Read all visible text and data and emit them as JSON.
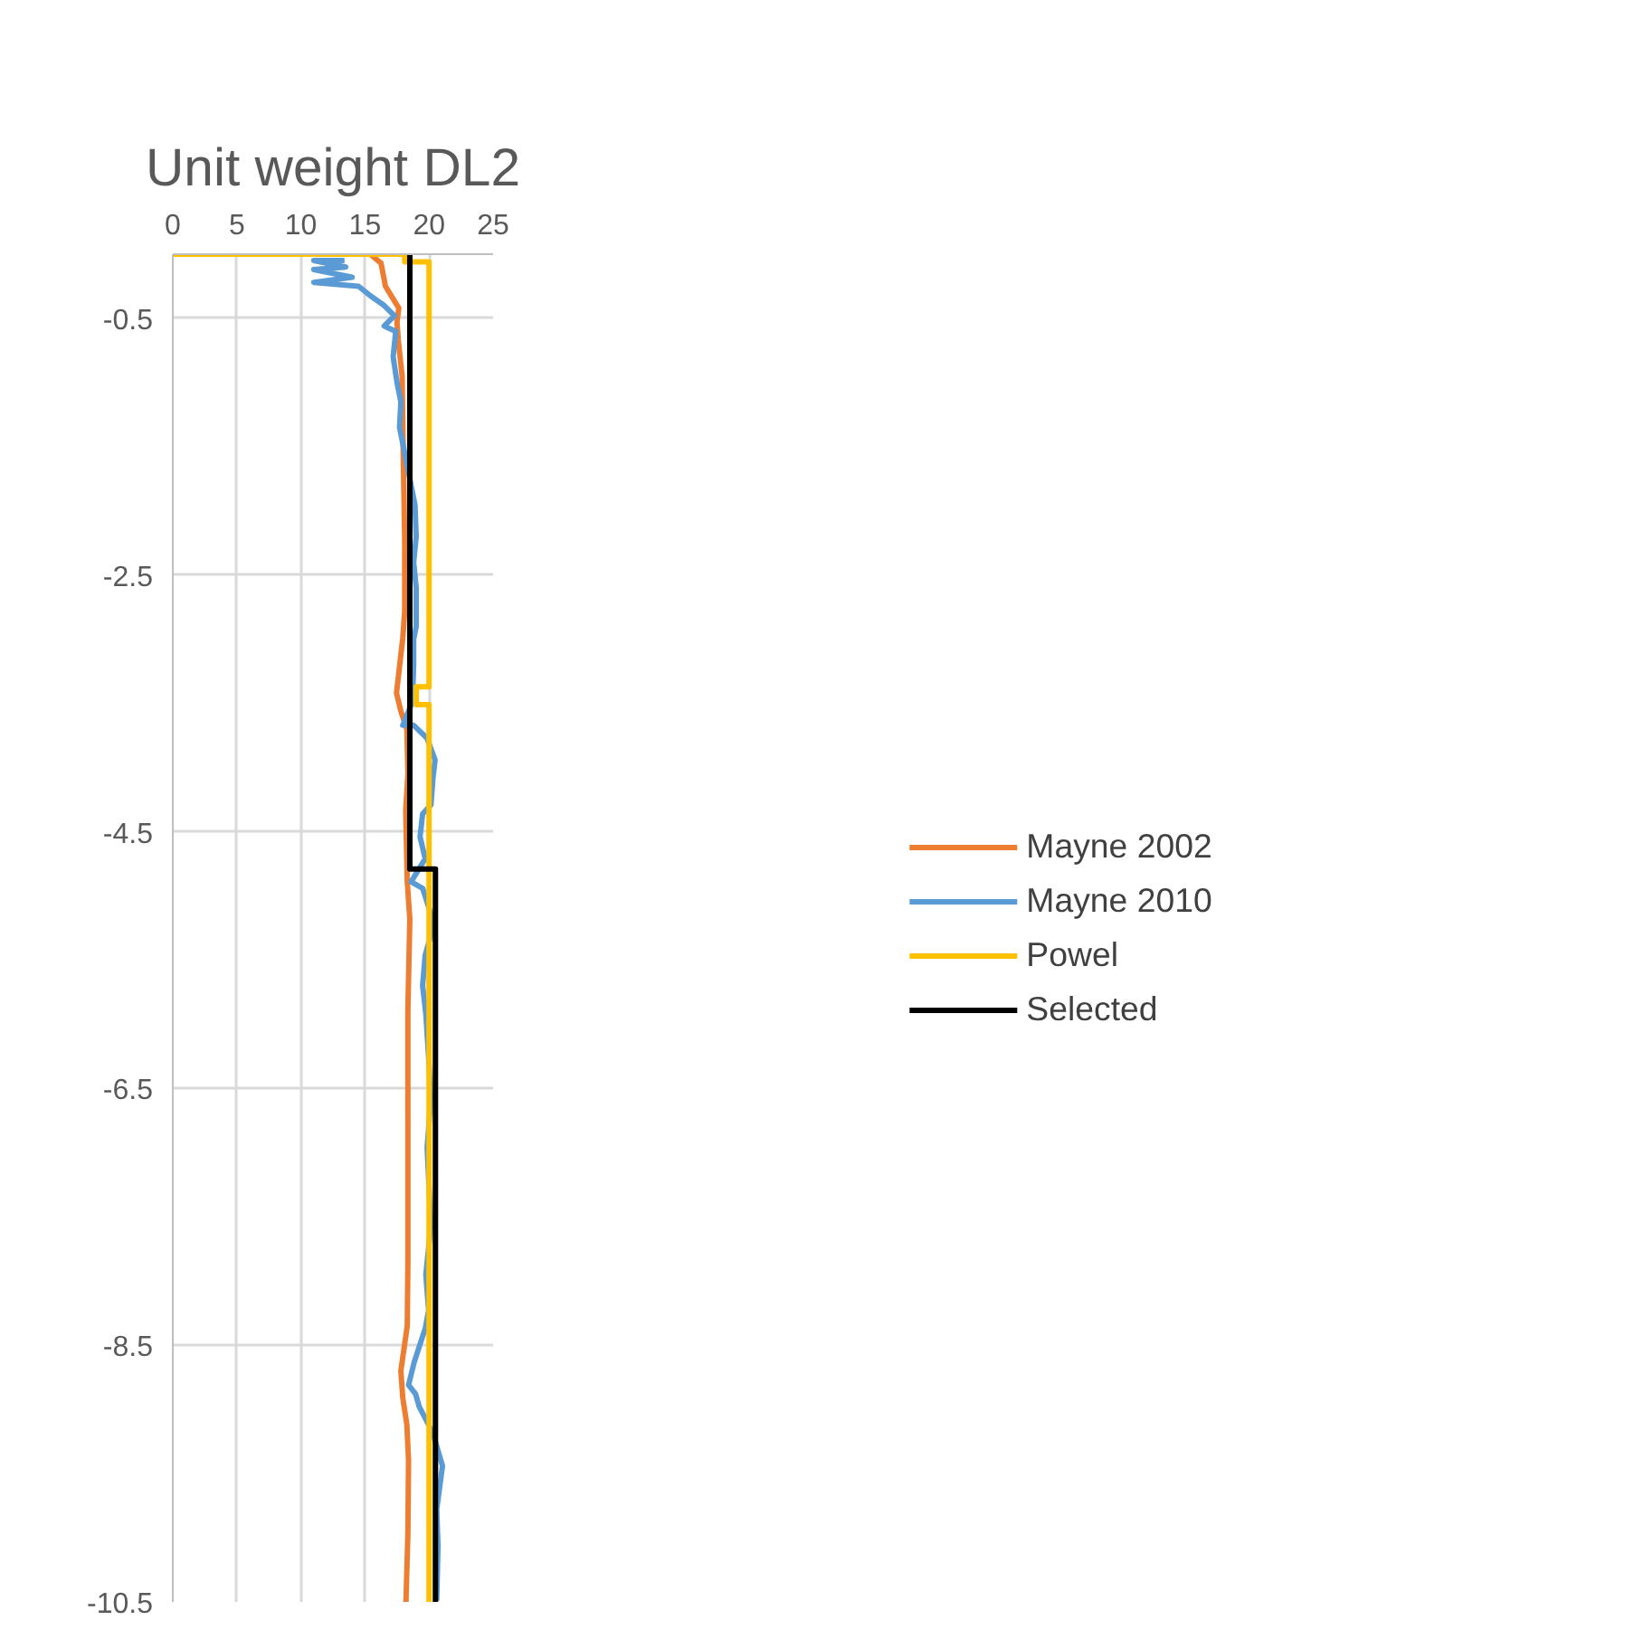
{
  "chart_data": {
    "type": "line",
    "title": "Unit weight DL2",
    "xlim": [
      0,
      25
    ],
    "xticks": [
      0,
      5,
      10,
      15,
      20,
      25
    ],
    "ylim": [
      -10.5,
      0
    ],
    "yticks": [
      -10.5,
      -8.5,
      -6.5,
      -4.5,
      -2.5,
      -0.5
    ],
    "grid": true,
    "legend": "right",
    "series": [
      {
        "name": "Mayne 2002",
        "color": "#ed7d31",
        "x": [
          15.4,
          16.25,
          16.6,
          17.64,
          17.5,
          17.6,
          17.9,
          18.0,
          18.1,
          18.1,
          17.95,
          17.46,
          17.8,
          18.27,
          18.35,
          18.18,
          18.3,
          18.5,
          18.35,
          18.35,
          18.35,
          18.3,
          17.8,
          17.95,
          18.27,
          18.4,
          18.35,
          18.2
        ],
        "values": [
          0,
          -0.07,
          -0.25,
          -0.42,
          -0.53,
          -0.67,
          -0.95,
          -1.65,
          -2.22,
          -2.78,
          -2.99,
          -3.42,
          -3.56,
          -3.7,
          -4.05,
          -4.33,
          -4.89,
          -5.18,
          -5.88,
          -6.73,
          -7.85,
          -8.35,
          -8.7,
          -8.91,
          -9.12,
          -9.4,
          -9.96,
          -10.5
        ]
      },
      {
        "name": "Mayne 2010",
        "color": "#5b9bd5",
        "x": [
          13.4,
          11.0,
          13.5,
          11.0,
          14.0,
          11.0,
          14.5,
          15.5,
          16.5,
          17.3,
          16.5,
          17.4,
          17.2,
          17.5,
          17.8,
          17.7,
          18.2,
          18.5,
          18.9,
          19.0,
          18.8,
          19.0,
          19.0,
          18.8,
          18.8,
          18.7,
          17.95,
          18.8,
          19.84,
          20.47,
          20.3,
          20.15,
          19.5,
          19.3,
          19.7,
          18.6,
          19.5,
          20.4,
          19.7,
          19.5,
          19.75,
          19.97,
          20.15,
          19.85,
          20.15,
          19.75,
          19.97,
          19.7,
          18.85,
          18.4,
          18.95,
          19.24,
          19.97,
          20.4,
          21.05,
          20.6,
          20.7,
          20.6
        ],
        "values": [
          -0.05,
          -0.05,
          -0.1,
          -0.12,
          -0.18,
          -0.22,
          -0.25,
          -0.33,
          -0.4,
          -0.48,
          -0.56,
          -0.6,
          -0.8,
          -1.0,
          -1.15,
          -1.35,
          -1.6,
          -1.75,
          -1.95,
          -2.2,
          -2.4,
          -2.6,
          -2.9,
          -3.0,
          -3.2,
          -3.49,
          -3.67,
          -3.67,
          -3.77,
          -3.94,
          -4.09,
          -4.29,
          -4.36,
          -4.54,
          -4.71,
          -4.89,
          -4.94,
          -5.22,
          -5.46,
          -5.7,
          -5.92,
          -6.26,
          -6.58,
          -6.96,
          -7.57,
          -7.95,
          -8.23,
          -8.37,
          -8.63,
          -8.81,
          -8.88,
          -8.98,
          -9.12,
          -9.22,
          -9.44,
          -9.78,
          -10.06,
          -10.49
        ]
      },
      {
        "name": "Powel",
        "color": "#ffc000",
        "x": [
          0,
          18.1,
          18.1,
          20.0,
          20.0,
          19.0,
          19.0,
          20.0,
          20.0
        ],
        "values": [
          0,
          0,
          -0.06,
          -0.06,
          -3.37,
          -3.37,
          -3.51,
          -3.51,
          -10.5
        ]
      },
      {
        "name": "Selected",
        "color": "#000000",
        "x": [
          18.5,
          18.5,
          20.5,
          20.5
        ],
        "values": [
          0,
          -4.79,
          -4.79,
          -10.5
        ]
      }
    ]
  }
}
